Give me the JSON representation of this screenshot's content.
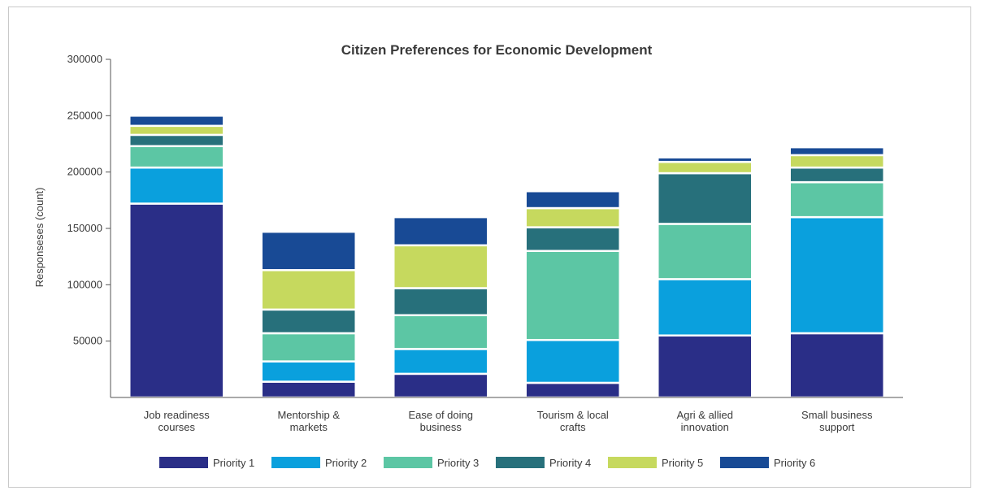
{
  "chart_data": {
    "type": "bar",
    "stacked": true,
    "title": "Citizen Preferences for Economic Development",
    "xlabel": "",
    "ylabel": "Responseses (count)",
    "ylim": [
      0,
      300000
    ],
    "yticks": [
      50000,
      100000,
      150000,
      200000,
      250000,
      300000
    ],
    "categories": [
      [
        "Job readiness",
        "courses"
      ],
      [
        "Mentorship &",
        "markets"
      ],
      [
        "Ease of doing",
        "business"
      ],
      [
        "Tourism & local",
        "crafts"
      ],
      [
        "Agri & allied",
        "innovation"
      ],
      [
        "Small business",
        "support"
      ]
    ],
    "series": [
      {
        "name": "Priority 1",
        "color": "#2a2e87",
        "values": [
          172000,
          14000,
          21000,
          13000,
          55000,
          57000
        ]
      },
      {
        "name": "Priority 2",
        "color": "#0aa0dd",
        "values": [
          32000,
          18000,
          22000,
          38000,
          50000,
          103000
        ]
      },
      {
        "name": "Priority 3",
        "color": "#5cc6a4",
        "values": [
          19000,
          25000,
          30000,
          79000,
          49000,
          31000
        ]
      },
      {
        "name": "Priority 4",
        "color": "#27707b",
        "values": [
          10000,
          21000,
          24000,
          21000,
          45000,
          13000
        ]
      },
      {
        "name": "Priority 5",
        "color": "#c6d95e",
        "values": [
          8000,
          35000,
          38000,
          17000,
          10000,
          11000
        ]
      },
      {
        "name": "Priority 6",
        "color": "#184a95",
        "values": [
          9000,
          34000,
          25000,
          15000,
          4000,
          7000
        ]
      }
    ],
    "grid": false,
    "legend_position": "bottom"
  }
}
